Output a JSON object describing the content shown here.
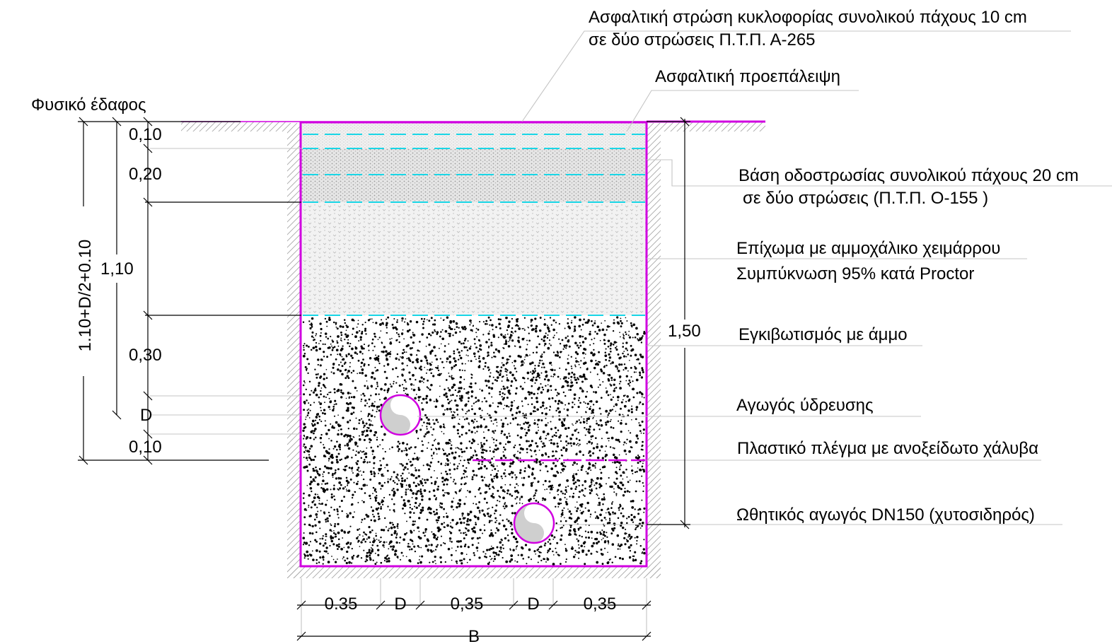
{
  "colors": {
    "trench_outline": "#d000e0",
    "layer_boundary": "#19d6e6",
    "leader_line": "#c4c4c4",
    "dimension_line": "#000000",
    "sand_fill_dots": "#000000",
    "granular_fill": "#e2e2e2"
  },
  "labels": {
    "natural_ground": "Φυσικό έδαφος",
    "asphalt_line1": "Ασφαλτική στρώση κυκλοφορίας συνολικού πάχους 10 cm",
    "asphalt_line2": "σε δύο στρώσεις Π.Τ.Π. Α-265",
    "prime_coat": "Ασφαλτική προεπάλειψη",
    "base_line1": "Βάση οδοστρωσίας συνολικού πάχους 20 cm",
    "base_line2": "σε δύο στρώσεις (Π.Τ.Π. Ο-155 )",
    "backfill_line1": "Επίχωμα με αμμοχάλικο χειμάρρου",
    "backfill_line2": "Συμπύκνωση 95% κατά Proctor",
    "sand_bedding": "Εγκιβωτισμός με άμμο",
    "water_pipe": "Αγωγός ύδρευσης",
    "plastic_mesh": "Πλαστικό πλέγμα με ανοξείδωτο χάλυβα",
    "force_main": "Ωθητικός αγωγός DN150 (χυτοσιδηρός)"
  },
  "dimensions": {
    "left_total": "1.10+D/2+0.10",
    "left_depth": "1,10",
    "asphalt": "0,10",
    "base": "0,20",
    "sand_cover": "0,30",
    "pipe": "D",
    "bedding": "0,10",
    "right_total": "1,50",
    "bottom_gap1": "0.35",
    "bottom_pipe1": "D",
    "bottom_gap2": "0,35",
    "bottom_pipe2": "D",
    "bottom_gap3": "0,35",
    "bottom_width": "B"
  }
}
